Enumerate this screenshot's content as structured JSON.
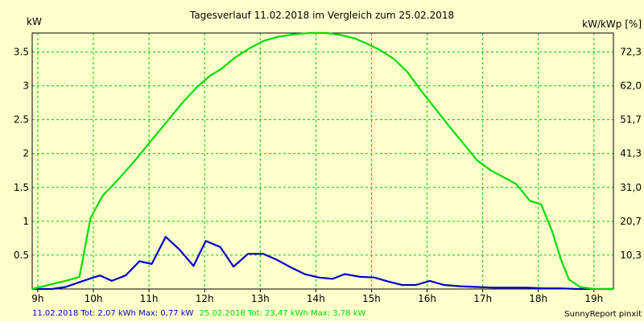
{
  "chart_data": {
    "type": "line",
    "title": "Tagesverlauf 11.02.2018 im Vergleich zum 25.02.2018",
    "ylabel_left": "kW",
    "ylabel_right": "kW/kWp [%]",
    "xlim": [
      8.9,
      19.35
    ],
    "ylim": [
      0,
      3.78
    ],
    "x_ticks": [
      9,
      10,
      11,
      12,
      13,
      14,
      15,
      16,
      17,
      18,
      19
    ],
    "x_tick_labels": [
      "9h",
      "10h",
      "11h",
      "12h",
      "13h",
      "14h",
      "15h",
      "16h",
      "17h",
      "18h",
      "19h"
    ],
    "y_ticks": [
      0.5,
      1,
      1.5,
      2,
      2.5,
      3,
      3.5
    ],
    "y_tick_labels": [
      "0.5",
      "1",
      "1.5",
      "2",
      "2.5",
      "3",
      "3.5"
    ],
    "y2_tick_labels": [
      "10,3",
      "20,7",
      "31,0",
      "41,3",
      "51,7",
      "62,0",
      "72,3"
    ],
    "grid": true,
    "series": [
      {
        "name": "11.02.2018",
        "color": "#0000cc",
        "x": [
          8.9,
          9.25,
          9.5,
          9.75,
          10.0,
          10.12,
          10.33,
          10.58,
          10.83,
          11.05,
          11.3,
          11.55,
          11.8,
          12.02,
          12.28,
          12.52,
          12.78,
          13.05,
          13.3,
          13.55,
          13.8,
          14.05,
          14.3,
          14.52,
          14.8,
          15.05,
          15.3,
          15.55,
          15.8,
          16.05,
          16.3,
          16.6,
          16.9,
          17.2,
          17.5,
          17.8,
          18.1,
          18.4,
          18.7,
          19.0,
          19.35
        ],
        "values": [
          0.0,
          0.0,
          0.03,
          0.1,
          0.17,
          0.2,
          0.12,
          0.2,
          0.41,
          0.37,
          0.77,
          0.58,
          0.34,
          0.71,
          0.62,
          0.33,
          0.52,
          0.52,
          0.43,
          0.32,
          0.22,
          0.17,
          0.15,
          0.22,
          0.18,
          0.17,
          0.11,
          0.06,
          0.06,
          0.12,
          0.06,
          0.04,
          0.03,
          0.02,
          0.02,
          0.02,
          0.01,
          0.01,
          0.0,
          0.0,
          0.0
        ]
      },
      {
        "name": "25.02.2018",
        "color": "#00dd00",
        "x": [
          8.9,
          9.25,
          9.5,
          9.75,
          9.95,
          10.17,
          10.45,
          10.75,
          11.05,
          11.35,
          11.6,
          11.85,
          12.1,
          12.3,
          12.55,
          12.8,
          13.05,
          13.3,
          13.6,
          13.9,
          14.2,
          14.45,
          14.7,
          14.9,
          15.15,
          15.4,
          15.65,
          15.9,
          16.15,
          16.4,
          16.65,
          16.9,
          17.15,
          17.4,
          17.6,
          17.85,
          18.05,
          18.25,
          18.4,
          18.55,
          18.75,
          19.0,
          19.35
        ],
        "values": [
          0.0,
          0.07,
          0.12,
          0.18,
          1.05,
          1.38,
          1.62,
          1.9,
          2.2,
          2.5,
          2.75,
          2.97,
          3.15,
          3.25,
          3.42,
          3.55,
          3.66,
          3.72,
          3.76,
          3.78,
          3.78,
          3.75,
          3.7,
          3.63,
          3.53,
          3.4,
          3.2,
          2.92,
          2.66,
          2.4,
          2.15,
          1.9,
          1.75,
          1.64,
          1.55,
          1.3,
          1.25,
          0.85,
          0.45,
          0.14,
          0.03,
          0.0,
          0.0
        ]
      }
    ]
  },
  "legend": {
    "entry1_text": "11.02.2018 Tot: 2,07 kWh Max: 0,77 kW",
    "entry1_color": "#0000cc",
    "entry2_text": "25.02.2018 Tot: 23,47 kWh Max: 3,78 kW",
    "entry2_color": "#00dd00"
  },
  "credit": "SunnyReport pinxit"
}
